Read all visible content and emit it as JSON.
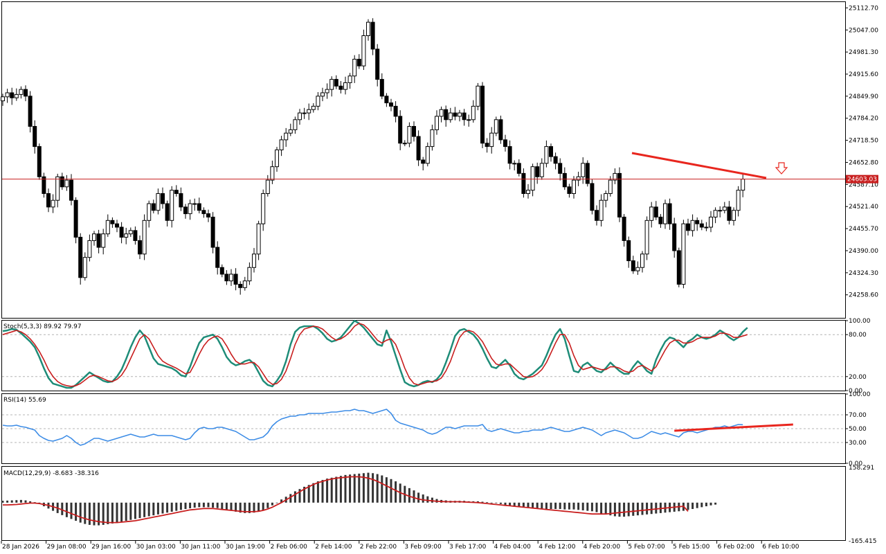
{
  "colors": {
    "up_candle": "#ffffff",
    "down_candle": "#000000",
    "candle_outline": "#000000",
    "price_line": "#c81e1e",
    "trendline": "#e8261e",
    "stoch_main": "#1e8c78",
    "stoch_signal": "#c81e1e",
    "rsi": "#3c8ce6",
    "macd_hist": "#333333",
    "macd_signal": "#c81e1e",
    "grid_dash": "#b4b4b4",
    "arrow": "#e8261e"
  },
  "price_panel": {
    "current_price_label": "24603.03",
    "current_price": 24603.03,
    "arrow_icon": "down-arrow-outline",
    "y_ticks": [
      "25112.70",
      "25047.00",
      "24981.30",
      "24915.60",
      "24849.90",
      "24784.20",
      "24718.50",
      "24652.80",
      "24587.10",
      "24521.40",
      "24455.70",
      "24390.00",
      "24324.30",
      "24258.60"
    ]
  },
  "time_axis": {
    "labels": [
      "28 Jan 2026",
      "29 Jan 08:00",
      "29 Jan 16:00",
      "30 Jan 03:00",
      "30 Jan 11:00",
      "30 Jan 19:00",
      "2 Feb 06:00",
      "2 Feb 14:00",
      "2 Feb 22:00",
      "3 Feb 09:00",
      "3 Feb 17:00",
      "4 Feb 04:00",
      "4 Feb 12:00",
      "4 Feb 20:00",
      "5 Feb 07:00",
      "5 Feb 15:00",
      "6 Feb 02:00",
      "6 Feb 10:00"
    ]
  },
  "stoch_panel": {
    "title": "Stoch(5,3,3) 89.92 79.97",
    "y_ticks": [
      "100.00",
      "80.00",
      "20.00",
      "0.00"
    ]
  },
  "rsi_panel": {
    "title": "RSI(14) 55.69",
    "y_ticks": [
      "100.00",
      "70.00",
      "50.00",
      "30.00",
      "0.00"
    ]
  },
  "macd_panel": {
    "title": "MACD(12,29,9) -8.683 -38.316",
    "y_ticks": [
      "158.291",
      "-165.415"
    ]
  },
  "chart_data": [
    {
      "type": "candlestick",
      "title": "",
      "ylim": [
        24190,
        25130
      ],
      "current_price": 24603.03,
      "closes": [
        24848,
        24860,
        24845,
        24855,
        24870,
        24850,
        24760,
        24700,
        24610,
        24560,
        24520,
        24540,
        24610,
        24580,
        24600,
        24540,
        24430,
        24310,
        24370,
        24420,
        24440,
        24400,
        24440,
        24480,
        24470,
        24460,
        24430,
        24440,
        24450,
        24420,
        24380,
        24480,
        24530,
        24510,
        24560,
        24530,
        24480,
        24570,
        24560,
        24520,
        24500,
        24530,
        24530,
        24510,
        24500,
        24490,
        24400,
        24340,
        24320,
        24300,
        24320,
        24290,
        24280,
        24300,
        24340,
        24380,
        24470,
        24560,
        24600,
        24640,
        24690,
        24720,
        24740,
        24750,
        24780,
        24800,
        24800,
        24810,
        24820,
        24850,
        24860,
        24870,
        24900,
        24880,
        24870,
        24890,
        24910,
        24960,
        24940,
        25030,
        25070,
        24990,
        24900,
        24850,
        24830,
        24820,
        24790,
        24710,
        24710,
        24760,
        24730,
        24660,
        24650,
        24700,
        24750,
        24790,
        24810,
        24780,
        24800,
        24790,
        24800,
        24780,
        24780,
        24820,
        24880,
        24710,
        24700,
        24740,
        24780,
        24720,
        24700,
        24650,
        24650,
        24620,
        24560,
        24570,
        24640,
        24610,
        24650,
        24700,
        24670,
        24650,
        24620,
        24580,
        24560,
        24600,
        24610,
        24650,
        24590,
        24510,
        24480,
        24540,
        24560,
        24600,
        24620,
        24490,
        24420,
        24360,
        24330,
        24340,
        24380,
        24480,
        24520,
        24490,
        24470,
        24530,
        24470,
        24390,
        24290,
        24470,
        24450,
        24480,
        24470,
        24460,
        24460,
        24490,
        24510,
        24510,
        24520,
        24480,
        24510,
        24570,
        24603.03
      ]
    },
    {
      "type": "line",
      "title": "Stoch(5,3,3) 89.92 79.97",
      "ylim": [
        0,
        100
      ],
      "reference_lines": [
        80,
        20
      ],
      "series": [
        {
          "name": "Stoch(5,3,3)",
          "values": [
            85,
            86,
            88,
            87,
            82,
            76,
            70,
            62,
            48,
            32,
            18,
            10,
            8,
            6,
            4,
            4,
            8,
            14,
            20,
            26,
            22,
            18,
            14,
            12,
            13,
            20,
            30,
            45,
            62,
            76,
            86,
            78,
            62,
            46,
            38,
            36,
            34,
            32,
            28,
            22,
            20,
            34,
            52,
            68,
            76,
            78,
            80,
            74,
            62,
            48,
            40,
            36,
            38,
            42,
            44,
            38,
            26,
            14,
            8,
            6,
            14,
            24,
            42,
            66,
            84,
            90,
            92,
            92,
            92,
            88,
            82,
            74,
            70,
            72,
            76,
            84,
            92,
            100,
            96,
            90,
            82,
            74,
            66,
            64,
            86,
            70,
            50,
            30,
            12,
            8,
            6,
            8,
            12,
            14,
            12,
            16,
            24,
            40,
            58,
            78,
            86,
            88,
            84,
            80,
            72,
            60,
            46,
            34,
            32,
            38,
            44,
            36,
            24,
            18,
            16,
            20,
            24,
            30,
            36,
            50,
            66,
            80,
            88,
            74,
            50,
            28,
            26,
            36,
            40,
            34,
            28,
            26,
            32,
            40,
            34,
            28,
            24,
            24,
            34,
            42,
            36,
            28,
            24,
            44,
            58,
            70,
            76,
            74,
            68,
            62,
            70,
            74,
            80,
            76,
            74,
            76,
            80,
            86,
            82,
            76,
            72,
            76,
            84,
            89.92
          ]
        },
        {
          "name": "Signal",
          "values": [
            80,
            82,
            84,
            86,
            84,
            80,
            74,
            66,
            56,
            44,
            30,
            20,
            13,
            9,
            7,
            6,
            7,
            10,
            15,
            20,
            22,
            20,
            17,
            14,
            13,
            16,
            22,
            32,
            46,
            60,
            74,
            80,
            74,
            62,
            50,
            42,
            38,
            35,
            32,
            28,
            24,
            26,
            38,
            52,
            64,
            72,
            76,
            78,
            74,
            64,
            52,
            42,
            38,
            38,
            40,
            40,
            34,
            24,
            14,
            9,
            10,
            16,
            28,
            46,
            66,
            80,
            88,
            90,
            92,
            91,
            88,
            82,
            76,
            72,
            74,
            78,
            84,
            92,
            96,
            94,
            88,
            80,
            72,
            68,
            72,
            74,
            66,
            50,
            32,
            18,
            10,
            8,
            10,
            12,
            13,
            14,
            18,
            28,
            42,
            60,
            76,
            84,
            86,
            84,
            78,
            70,
            58,
            46,
            38,
            36,
            38,
            38,
            32,
            26,
            20,
            19,
            20,
            24,
            30,
            40,
            54,
            68,
            80,
            80,
            68,
            50,
            36,
            30,
            32,
            34,
            32,
            30,
            30,
            34,
            34,
            32,
            28,
            26,
            28,
            34,
            36,
            32,
            28,
            34,
            46,
            58,
            68,
            72,
            72,
            68,
            68,
            70,
            74,
            76,
            76,
            76,
            78,
            82,
            82,
            80,
            76,
            76,
            78,
            79.97
          ]
        }
      ]
    },
    {
      "type": "line",
      "title": "RSI(14) 55.69",
      "ylim": [
        0,
        100
      ],
      "reference_lines": [
        70,
        50,
        30
      ],
      "series": [
        {
          "name": "RSI(14)",
          "values": [
            55,
            54,
            54,
            55,
            53,
            52,
            50,
            48,
            40,
            36,
            33,
            32,
            34,
            36,
            40,
            36,
            30,
            26,
            28,
            32,
            36,
            36,
            34,
            32,
            34,
            36,
            38,
            40,
            42,
            40,
            38,
            38,
            40,
            42,
            40,
            40,
            40,
            40,
            38,
            36,
            34,
            36,
            44,
            50,
            52,
            50,
            50,
            52,
            52,
            50,
            48,
            46,
            42,
            38,
            34,
            34,
            36,
            38,
            44,
            54,
            60,
            64,
            66,
            68,
            68,
            70,
            70,
            72,
            72,
            72,
            72,
            73,
            74,
            74,
            75,
            76,
            76,
            78,
            76,
            76,
            74,
            72,
            74,
            76,
            78,
            72,
            62,
            58,
            56,
            54,
            52,
            50,
            48,
            44,
            42,
            44,
            48,
            52,
            52,
            50,
            52,
            54,
            54,
            54,
            54,
            56,
            48,
            46,
            48,
            50,
            48,
            46,
            44,
            44,
            46,
            46,
            48,
            48,
            48,
            50,
            52,
            50,
            48,
            46,
            46,
            48,
            50,
            52,
            50,
            48,
            44,
            40,
            44,
            46,
            48,
            46,
            44,
            40,
            36,
            36,
            38,
            42,
            46,
            44,
            42,
            44,
            42,
            40,
            38,
            44,
            46,
            46,
            44,
            46,
            48,
            50,
            52,
            52,
            54,
            52,
            54,
            56,
            55.69
          ]
        }
      ],
      "trendline": [
        [
          147,
          47
        ],
        [
          173,
          56
        ]
      ]
    },
    {
      "type": "bar",
      "title": "MACD(12,29,9) -8.683 -38.316",
      "ylim": [
        -165.415,
        158.291
      ],
      "series": [
        {
          "name": "MACD(12,29,9)",
          "values": [
            8,
            9,
            10,
            11,
            12,
            10,
            6,
            2,
            -6,
            -16,
            -26,
            -36,
            -46,
            -55,
            -64,
            -72,
            -80,
            -88,
            -94,
            -98,
            -100,
            -100,
            -98,
            -95,
            -92,
            -88,
            -84,
            -80,
            -76,
            -72,
            -68,
            -64,
            -60,
            -56,
            -52,
            -48,
            -44,
            -40,
            -36,
            -32,
            -28,
            -25,
            -22,
            -20,
            -20,
            -20,
            -22,
            -24,
            -28,
            -32,
            -36,
            -40,
            -44,
            -46,
            -46,
            -44,
            -40,
            -34,
            -24,
            -12,
            0,
            14,
            26,
            38,
            50,
            60,
            70,
            78,
            86,
            94,
            100,
            106,
            110,
            114,
            118,
            122,
            124,
            126,
            128,
            130,
            132,
            130,
            126,
            120,
            112,
            104,
            94,
            84,
            74,
            64,
            54,
            44,
            36,
            28,
            22,
            16,
            12,
            10,
            8,
            8,
            8,
            8,
            6,
            6,
            6,
            4,
            2,
            0,
            -2,
            -6,
            -10,
            -14,
            -18,
            -20,
            -22,
            -24,
            -26,
            -26,
            -26,
            -28,
            -28,
            -28,
            -28,
            -30,
            -30,
            -30,
            -32,
            -34,
            -36,
            -38,
            -42,
            -48,
            -52,
            -56,
            -60,
            -62,
            -62,
            -60,
            -58,
            -56,
            -54,
            -52,
            -50,
            -48,
            -46,
            -44,
            -42,
            -40,
            -38,
            -36,
            -32,
            -28,
            -24,
            -20,
            -16,
            -12,
            -8.683
          ]
        },
        {
          "name": "Signal",
          "values": [
            -10,
            -10,
            -9,
            -8,
            -6,
            -4,
            -2,
            -2,
            -4,
            -8,
            -12,
            -18,
            -24,
            -32,
            -40,
            -48,
            -56,
            -64,
            -70,
            -76,
            -80,
            -84,
            -86,
            -88,
            -88,
            -88,
            -86,
            -84,
            -82,
            -80,
            -76,
            -72,
            -68,
            -64,
            -60,
            -56,
            -52,
            -48,
            -44,
            -40,
            -36,
            -32,
            -30,
            -28,
            -26,
            -26,
            -26,
            -28,
            -30,
            -32,
            -34,
            -36,
            -38,
            -40,
            -40,
            -40,
            -38,
            -34,
            -28,
            -20,
            -10,
            0,
            12,
            24,
            36,
            48,
            60,
            70,
            80,
            88,
            94,
            100,
            104,
            108,
            110,
            112,
            114,
            114,
            114,
            112,
            108,
            102,
            94,
            84,
            74,
            64,
            54,
            44,
            36,
            28,
            22,
            16,
            12,
            10,
            8,
            6,
            5,
            4,
            4,
            4,
            4,
            3,
            2,
            1,
            0,
            -2,
            -4,
            -6,
            -8,
            -10,
            -12,
            -14,
            -16,
            -18,
            -20,
            -22,
            -24,
            -26,
            -28,
            -30,
            -32,
            -34,
            -36,
            -38,
            -40,
            -42,
            -44,
            -46,
            -48,
            -50,
            -50,
            -50,
            -50,
            -48,
            -46,
            -44,
            -42,
            -40,
            -38,
            -36,
            -34,
            -32,
            -30,
            -28,
            -26,
            -24,
            -22,
            -20,
            -18,
            -16,
            -38.316
          ]
        }
      ]
    }
  ]
}
